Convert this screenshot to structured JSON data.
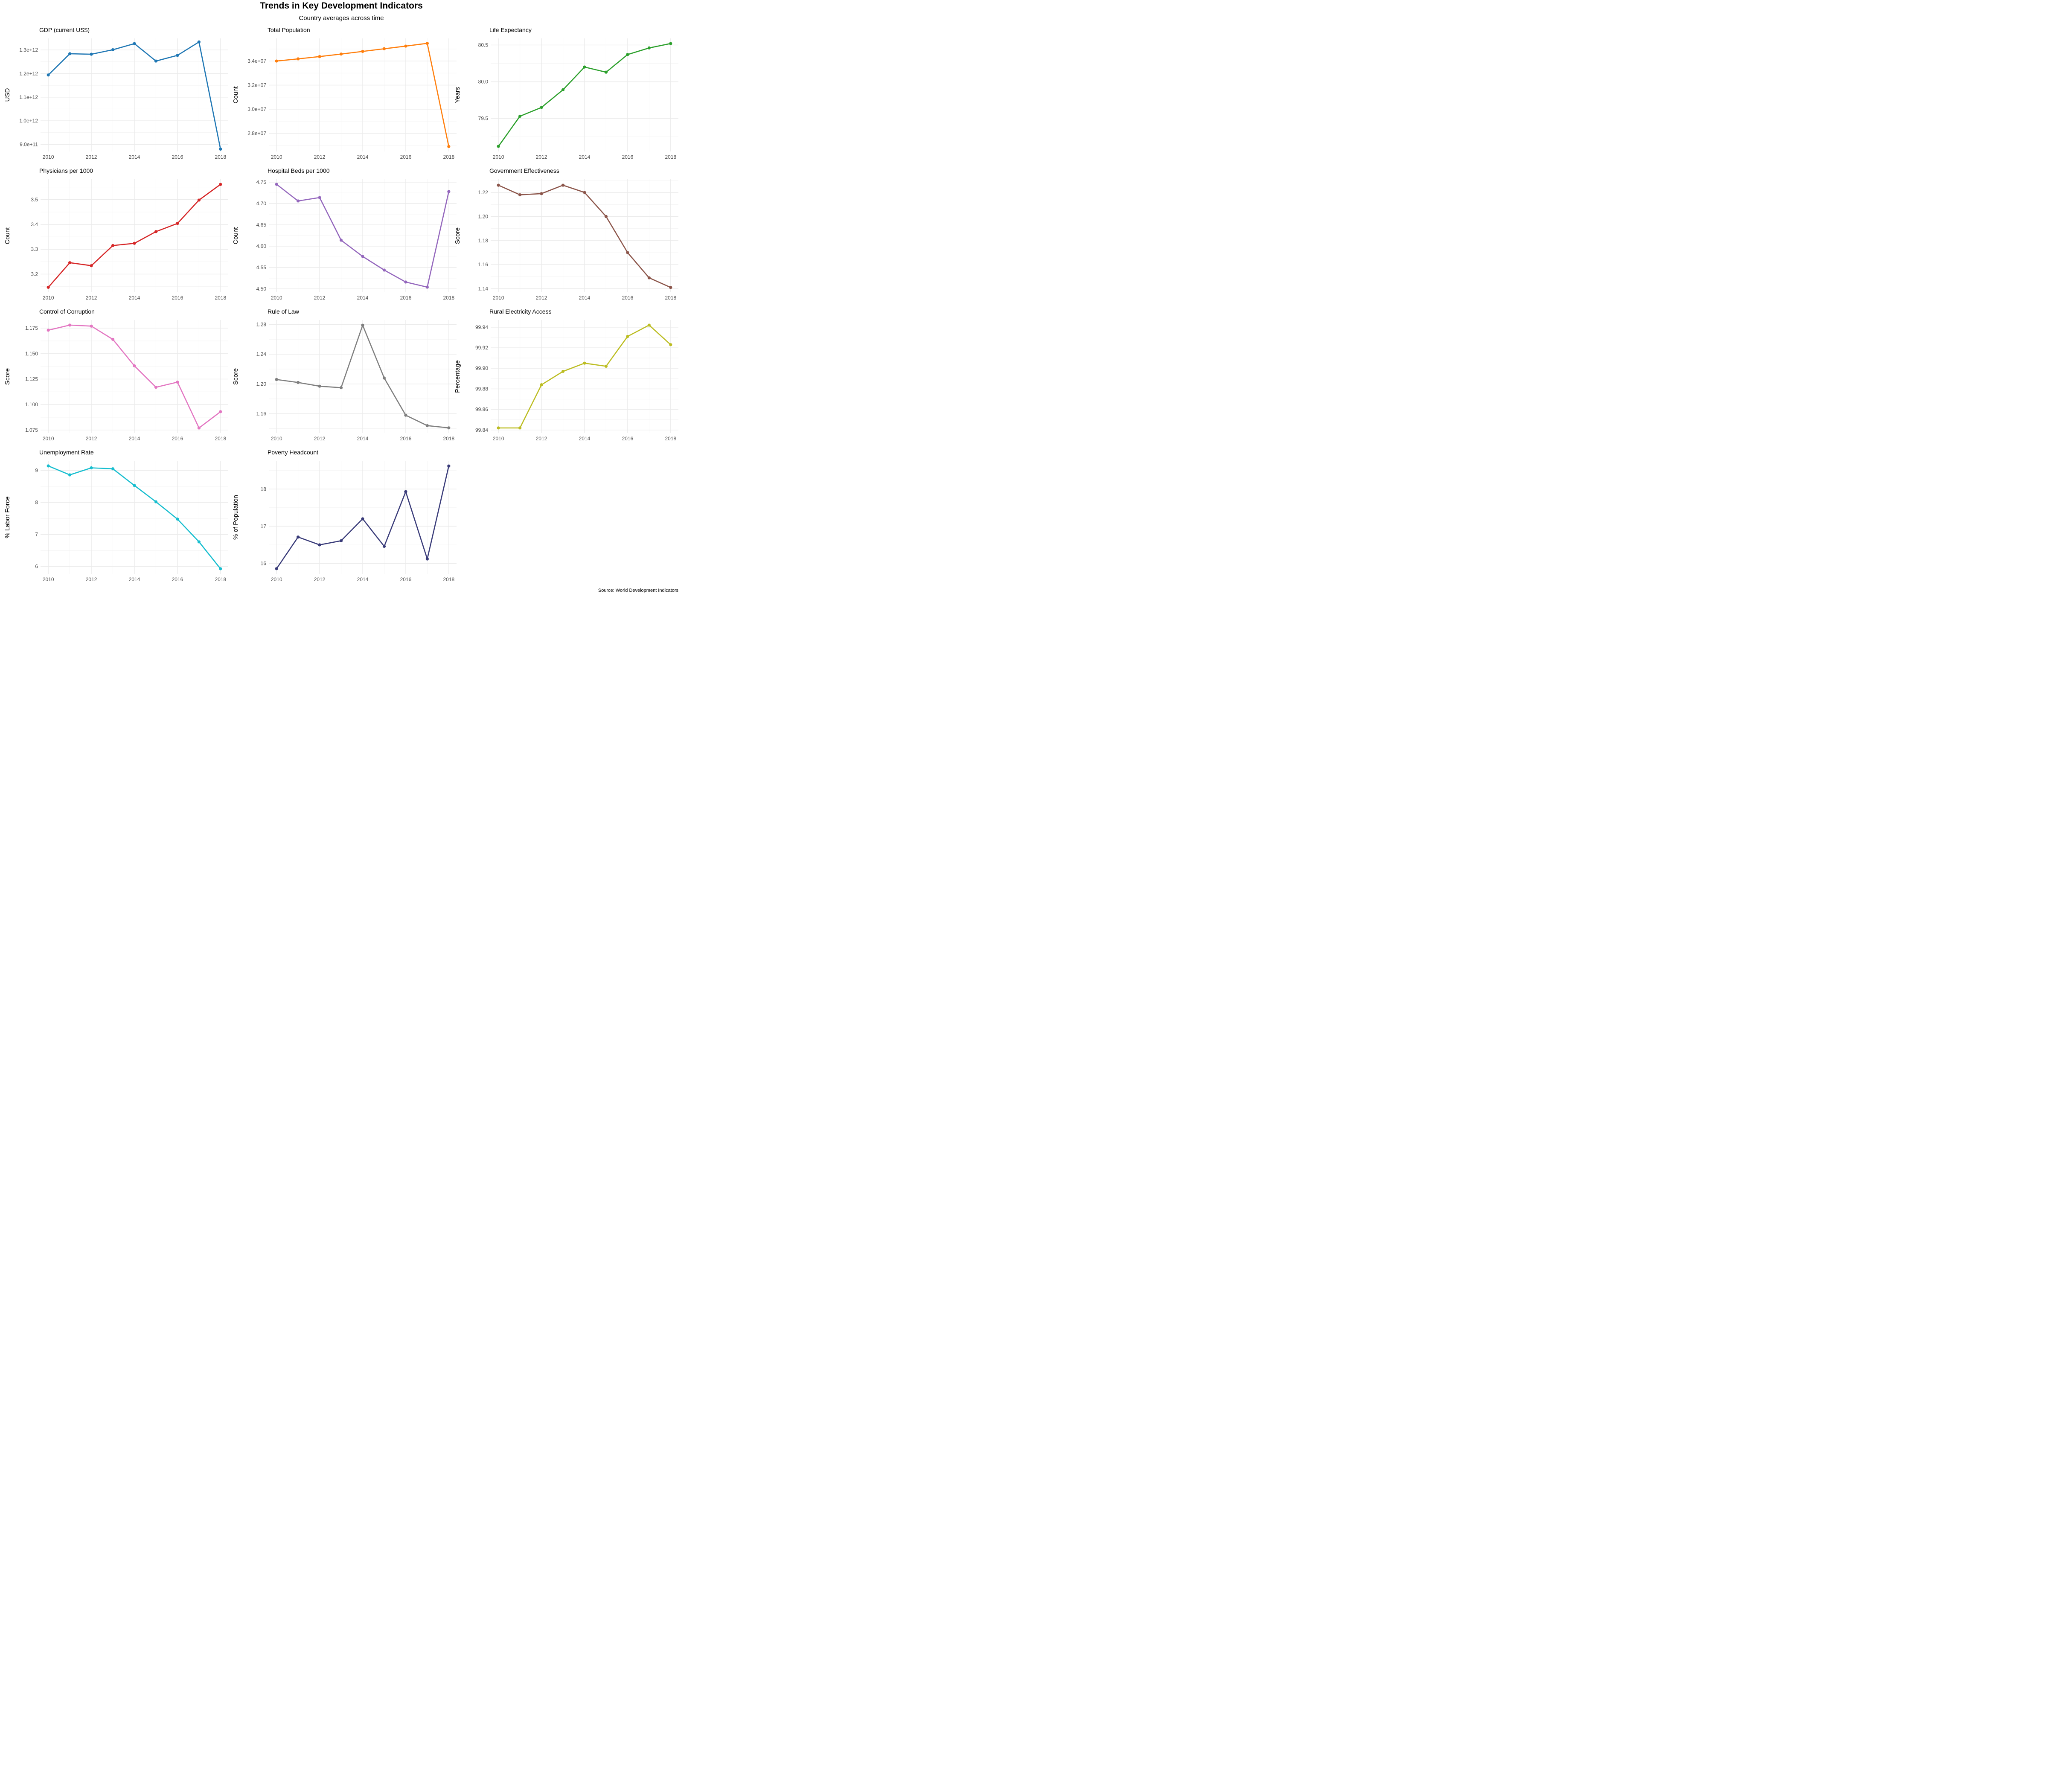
{
  "figure": {
    "title": "Trends in Key Development Indicators",
    "subtitle": "Country averages across time",
    "caption": "Source: World Development Indicators"
  },
  "chart_data": [
    {
      "type": "line",
      "title": "GDP (current US$)",
      "ylabel": "USD",
      "xlabel": "",
      "color": "#1f77b4",
      "x": [
        2010,
        2011,
        2012,
        2013,
        2014,
        2015,
        2016,
        2017,
        2018
      ],
      "values": [
        1194000000000.0,
        1284000000000.0,
        1282000000000.0,
        1301000000000.0,
        1327000000000.0,
        1253000000000.0,
        1277000000000.0,
        1334000000000.0,
        880000000000.0
      ],
      "ylim": [
        870000000000.0,
        1349000000000.0
      ],
      "yticks": [
        900000000000.0,
        1000000000000.0,
        1100000000000.0,
        1200000000000.0,
        1300000000000.0
      ],
      "ytick_labels": [
        "9.0e+11",
        "1.0e+12",
        "1.1e+12",
        "1.2e+12",
        "1.3e+12"
      ],
      "xticks": [
        2010,
        2012,
        2014,
        2016,
        2018
      ],
      "xtick_labels": [
        "2010",
        "2012",
        "2014",
        "2016",
        "2018"
      ],
      "grid": true
    },
    {
      "type": "line",
      "title": "Total Population",
      "ylabel": "Count",
      "xlabel": "",
      "color": "#ff7f0e",
      "x": [
        2010,
        2011,
        2012,
        2013,
        2014,
        2015,
        2016,
        2017,
        2018
      ],
      "values": [
        34000000.0,
        34180000.0,
        34370000.0,
        34580000.0,
        34800000.0,
        35020000.0,
        35240000.0,
        35470000.0,
        26900000.0
      ],
      "ylim": [
        26490000.0,
        35880000.0
      ],
      "yticks": [
        28000000.0,
        30000000.0,
        32000000.0,
        34000000.0
      ],
      "ytick_labels": [
        "2.8e+07",
        "3.0e+07",
        "3.2e+07",
        "3.4e+07"
      ],
      "xticks": [
        2010,
        2012,
        2014,
        2016,
        2018
      ],
      "xtick_labels": [
        "2010",
        "2012",
        "2014",
        "2016",
        "2018"
      ],
      "grid": true
    },
    {
      "type": "line",
      "title": "Life Expectancy",
      "ylabel": "Years",
      "xlabel": "",
      "color": "#2ca02c",
      "x": [
        2010,
        2011,
        2012,
        2013,
        2014,
        2015,
        2016,
        2017,
        2018
      ],
      "values": [
        79.12,
        79.53,
        79.65,
        79.89,
        80.2,
        80.13,
        80.37,
        80.46,
        80.52
      ],
      "ylim": [
        79.05,
        80.59
      ],
      "yticks": [
        79.5,
        80.0,
        80.5
      ],
      "ytick_labels": [
        "79.5",
        "80.0",
        "80.5"
      ],
      "xticks": [
        2010,
        2012,
        2014,
        2016,
        2018
      ],
      "xtick_labels": [
        "2010",
        "2012",
        "2014",
        "2016",
        "2018"
      ],
      "grid": true
    },
    {
      "type": "line",
      "title": "Physicians per 1000",
      "ylabel": "Count",
      "xlabel": "",
      "color": "#d62728",
      "x": [
        2010,
        2011,
        2012,
        2013,
        2014,
        2015,
        2016,
        2017,
        2018
      ],
      "values": [
        3.147,
        3.246,
        3.234,
        3.315,
        3.324,
        3.371,
        3.404,
        3.498,
        3.561
      ],
      "ylim": [
        3.127,
        3.582
      ],
      "yticks": [
        3.2,
        3.3,
        3.4,
        3.5
      ],
      "ytick_labels": [
        "3.2",
        "3.3",
        "3.4",
        "3.5"
      ],
      "xticks": [
        2010,
        2012,
        2014,
        2016,
        2018
      ],
      "xtick_labels": [
        "2010",
        "2012",
        "2014",
        "2016",
        "2018"
      ],
      "grid": true
    },
    {
      "type": "line",
      "title": "Hospital Beds per 1000",
      "ylabel": "Count",
      "xlabel": "",
      "color": "#9467bd",
      "x": [
        2010,
        2011,
        2012,
        2013,
        2014,
        2015,
        2016,
        2017,
        2018
      ],
      "values": [
        4.745,
        4.706,
        4.714,
        4.614,
        4.576,
        4.544,
        4.516,
        4.504,
        4.728
      ],
      "ylim": [
        4.492,
        4.757
      ],
      "yticks": [
        4.5,
        4.55,
        4.6,
        4.65,
        4.7,
        4.75
      ],
      "ytick_labels": [
        "4.50",
        "4.55",
        "4.60",
        "4.65",
        "4.70",
        "4.75"
      ],
      "xticks": [
        2010,
        2012,
        2014,
        2016,
        2018
      ],
      "xtick_labels": [
        "2010",
        "2012",
        "2014",
        "2016",
        "2018"
      ],
      "grid": true
    },
    {
      "type": "line",
      "title": "Government Effectiveness",
      "ylabel": "Score",
      "xlabel": "",
      "color": "#8c564b",
      "x": [
        2010,
        2011,
        2012,
        2013,
        2014,
        2015,
        2016,
        2017,
        2018
      ],
      "values": [
        1.226,
        1.218,
        1.219,
        1.226,
        1.22,
        1.2,
        1.17,
        1.149,
        1.141
      ],
      "ylim": [
        1.137,
        1.231
      ],
      "yticks": [
        1.14,
        1.16,
        1.18,
        1.2,
        1.22
      ],
      "ytick_labels": [
        "1.14",
        "1.16",
        "1.18",
        "1.20",
        "1.22"
      ],
      "xticks": [
        2010,
        2012,
        2014,
        2016,
        2018
      ],
      "xtick_labels": [
        "2010",
        "2012",
        "2014",
        "2016",
        "2018"
      ],
      "grid": true
    },
    {
      "type": "line",
      "title": "Control of Corruption",
      "ylabel": "Score",
      "xlabel": "",
      "color": "#e377c2",
      "x": [
        2010,
        2011,
        2012,
        2013,
        2014,
        2015,
        2016,
        2017,
        2018
      ],
      "values": [
        1.173,
        1.178,
        1.177,
        1.164,
        1.138,
        1.117,
        1.122,
        1.077,
        1.093
      ],
      "ylim": [
        1.072,
        1.183
      ],
      "yticks": [
        1.075,
        1.1,
        1.125,
        1.15,
        1.175
      ],
      "ytick_labels": [
        "1.075",
        "1.100",
        "1.125",
        "1.150",
        "1.175"
      ],
      "xticks": [
        2010,
        2012,
        2014,
        2016,
        2018
      ],
      "xtick_labels": [
        "2010",
        "2012",
        "2014",
        "2016",
        "2018"
      ],
      "grid": true
    },
    {
      "type": "line",
      "title": "Rule of Law",
      "ylabel": "Score",
      "xlabel": "",
      "color": "#7f7f7f",
      "x": [
        2010,
        2011,
        2012,
        2013,
        2014,
        2015,
        2016,
        2017,
        2018
      ],
      "values": [
        1.206,
        1.202,
        1.197,
        1.195,
        1.279,
        1.208,
        1.158,
        1.144,
        1.141
      ],
      "ylim": [
        1.134,
        1.286
      ],
      "yticks": [
        1.16,
        1.2,
        1.24,
        1.28
      ],
      "ytick_labels": [
        "1.16",
        "1.20",
        "1.24",
        "1.28"
      ],
      "xticks": [
        2010,
        2012,
        2014,
        2016,
        2018
      ],
      "xtick_labels": [
        "2010",
        "2012",
        "2014",
        "2016",
        "2018"
      ],
      "grid": true
    },
    {
      "type": "line",
      "title": "Rural Electricity Access",
      "ylabel": "Percentage",
      "xlabel": "",
      "color": "#bcbd22",
      "x": [
        2010,
        2011,
        2012,
        2013,
        2014,
        2015,
        2016,
        2017,
        2018
      ],
      "values": [
        99.842,
        99.842,
        99.884,
        99.897,
        99.905,
        99.902,
        99.931,
        99.942,
        99.923
      ],
      "ylim": [
        99.837,
        99.947
      ],
      "yticks": [
        99.84,
        99.86,
        99.88,
        99.9,
        99.92,
        99.94
      ],
      "ytick_labels": [
        "99.84",
        "99.86",
        "99.88",
        "99.90",
        "99.92",
        "99.94"
      ],
      "xticks": [
        2010,
        2012,
        2014,
        2016,
        2018
      ],
      "xtick_labels": [
        "2010",
        "2012",
        "2014",
        "2016",
        "2018"
      ],
      "grid": true
    },
    {
      "type": "line",
      "title": "Unemployment Rate",
      "ylabel": "% Labor Force",
      "xlabel": "",
      "color": "#17becf",
      "x": [
        2010,
        2011,
        2012,
        2013,
        2014,
        2015,
        2016,
        2017,
        2018
      ],
      "values": [
        9.14,
        8.86,
        9.08,
        9.05,
        8.53,
        8.02,
        7.48,
        6.77,
        5.93
      ],
      "ylim": [
        5.77,
        9.3
      ],
      "yticks": [
        6,
        7,
        8,
        9
      ],
      "ytick_labels": [
        "6",
        "7",
        "8",
        "9"
      ],
      "xticks": [
        2010,
        2012,
        2014,
        2016,
        2018
      ],
      "xtick_labels": [
        "2010",
        "2012",
        "2014",
        "2016",
        "2018"
      ],
      "grid": true
    },
    {
      "type": "line",
      "title": "Poverty Headcount",
      "ylabel": "% of Population",
      "xlabel": "",
      "color": "#393b79",
      "x": [
        2010,
        2011,
        2012,
        2013,
        2014,
        2015,
        2016,
        2017,
        2018
      ],
      "values": [
        15.86,
        16.71,
        16.5,
        16.61,
        17.2,
        16.46,
        17.93,
        16.12,
        18.62
      ],
      "ylim": [
        15.72,
        18.76
      ],
      "yticks": [
        16,
        17,
        18
      ],
      "ytick_labels": [
        "16",
        "17",
        "18"
      ],
      "xticks": [
        2010,
        2012,
        2014,
        2016,
        2018
      ],
      "xtick_labels": [
        "2010",
        "2012",
        "2014",
        "2016",
        "2018"
      ],
      "grid": true
    }
  ]
}
